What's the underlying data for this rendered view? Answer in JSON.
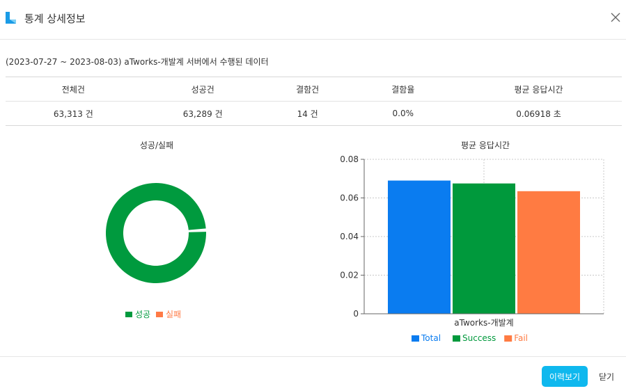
{
  "dialog": {
    "title": "통계 상세정보",
    "description": "(2023-07-27 ~ 2023-08-03) aTworks-개발계 서버에서 수행된 데이터",
    "history_button": "이력보기",
    "close_button": "닫기",
    "colors": {
      "accent": "#0fb8ee",
      "logo": "#1a9be6"
    }
  },
  "stats_table": {
    "headers": [
      "전체건",
      "성공건",
      "결함건",
      "결함율",
      "평균 응답시간"
    ],
    "row": [
      "63,313 건",
      "63,289 건",
      "14 건",
      "0.0%",
      "0.06918 초"
    ]
  },
  "chart_data": [
    {
      "type": "pie",
      "title": "성공/실패",
      "labels": [
        "성공",
        "실패"
      ],
      "values": [
        63289,
        14
      ],
      "colors": [
        "#009a3e",
        "#ff7a45"
      ],
      "legend": "bottom"
    },
    {
      "type": "bar",
      "title": "평균 응답시간",
      "categories": [
        "aTworks-개발계"
      ],
      "series": [
        {
          "name": "Total",
          "values": [
            0.069
          ],
          "color": "#0a7cf0"
        },
        {
          "name": "Success",
          "values": [
            0.0675
          ],
          "color": "#00993c"
        },
        {
          "name": "Fail",
          "values": [
            0.0635
          ],
          "color": "#ff7b42"
        }
      ],
      "ylim": [
        0,
        0.08
      ],
      "yticks": [
        "0",
        "0.02",
        "0.04",
        "0.06",
        "0.08"
      ],
      "grid": true,
      "legend": "bottom"
    }
  ]
}
